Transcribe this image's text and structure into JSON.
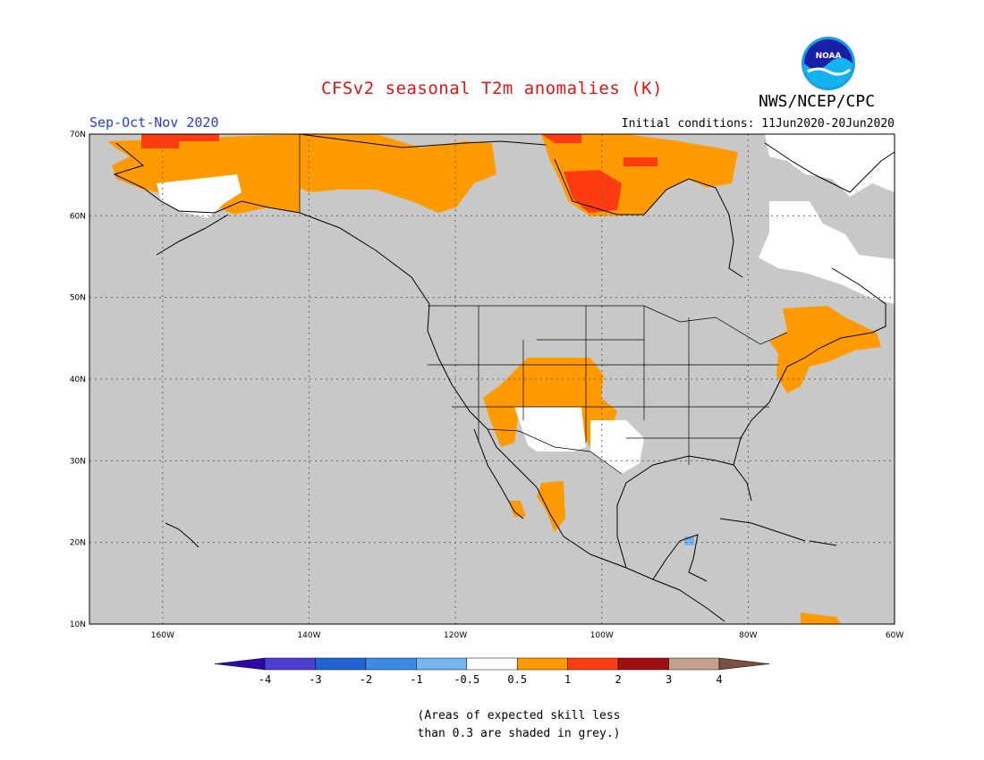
{
  "header": {
    "title": "CFSv2 seasonal T2m anomalies (K)",
    "season": "Sep-Oct-Nov 2020",
    "initial_conditions": "Initial conditions: 11Jun2020-20Jun2020",
    "agency": "NWS/NCEP/CPC",
    "logo_text": "NOAA"
  },
  "map": {
    "region": "North America",
    "lon_range": [
      -170,
      -60
    ],
    "lat_range": [
      10,
      70
    ],
    "lon_ticks": [
      "160W",
      "140W",
      "120W",
      "100W",
      "80W",
      "60W"
    ],
    "lat_ticks": [
      "10N",
      "20N",
      "30N",
      "40N",
      "50N",
      "60N",
      "70N"
    ],
    "grid": true,
    "background_color": "#c8c8c8"
  },
  "colorbar": {
    "labels": [
      "-4",
      "-3",
      "-2",
      "-1",
      "-0.5",
      "0.5",
      "1",
      "2",
      "3",
      "4"
    ],
    "colors": [
      "#2c08a8",
      "#4d3fd4",
      "#1e64d2",
      "#3c8ce6",
      "#78b4f0",
      "#ffffff",
      "#ff9b00",
      "#ff3c10",
      "#a01010",
      "#c8a090",
      "#7a5040"
    ]
  },
  "note": {
    "line1": "(Areas of expected skill less",
    "line2": "than 0.3 are shaded in grey.)"
  }
}
